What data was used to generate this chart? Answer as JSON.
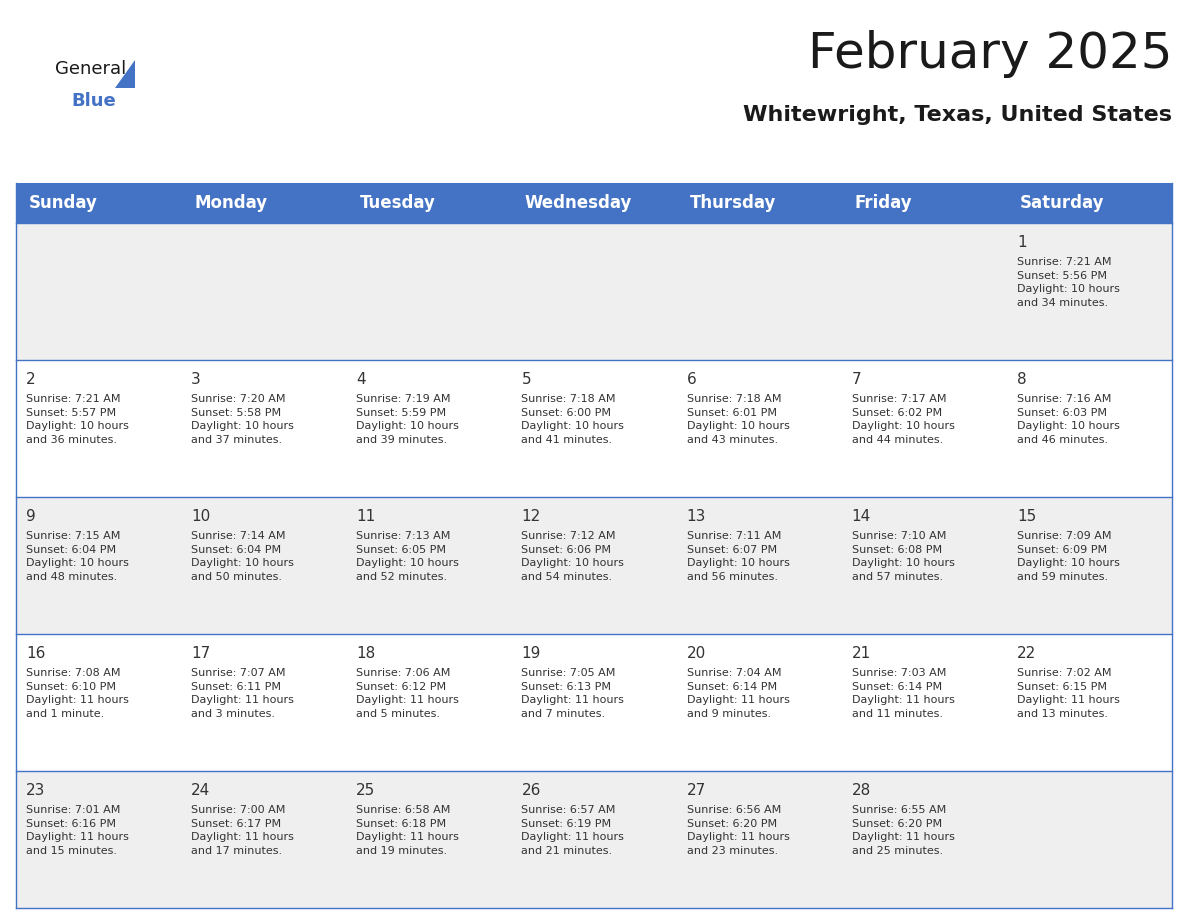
{
  "title": "February 2025",
  "subtitle": "Whitewright, Texas, United States",
  "header_bg_color": "#4472C4",
  "header_text_color": "#FFFFFF",
  "row_colors": [
    "#EFEFEF",
    "#FFFFFF",
    "#EFEFEF",
    "#FFFFFF",
    "#EFEFEF"
  ],
  "header_days": [
    "Sunday",
    "Monday",
    "Tuesday",
    "Wednesday",
    "Thursday",
    "Friday",
    "Saturday"
  ],
  "title_color": "#1a1a1a",
  "subtitle_color": "#1a1a1a",
  "cell_text_color": "#333333",
  "day_num_color": "#333333",
  "grid_line_color": "#4472C4",
  "logo_color_general": "#1a1a1a",
  "logo_color_blue": "#4472C4",
  "weeks": [
    [
      {
        "day": "",
        "info": ""
      },
      {
        "day": "",
        "info": ""
      },
      {
        "day": "",
        "info": ""
      },
      {
        "day": "",
        "info": ""
      },
      {
        "day": "",
        "info": ""
      },
      {
        "day": "",
        "info": ""
      },
      {
        "day": "1",
        "info": "Sunrise: 7:21 AM\nSunset: 5:56 PM\nDaylight: 10 hours\nand 34 minutes."
      }
    ],
    [
      {
        "day": "2",
        "info": "Sunrise: 7:21 AM\nSunset: 5:57 PM\nDaylight: 10 hours\nand 36 minutes."
      },
      {
        "day": "3",
        "info": "Sunrise: 7:20 AM\nSunset: 5:58 PM\nDaylight: 10 hours\nand 37 minutes."
      },
      {
        "day": "4",
        "info": "Sunrise: 7:19 AM\nSunset: 5:59 PM\nDaylight: 10 hours\nand 39 minutes."
      },
      {
        "day": "5",
        "info": "Sunrise: 7:18 AM\nSunset: 6:00 PM\nDaylight: 10 hours\nand 41 minutes."
      },
      {
        "day": "6",
        "info": "Sunrise: 7:18 AM\nSunset: 6:01 PM\nDaylight: 10 hours\nand 43 minutes."
      },
      {
        "day": "7",
        "info": "Sunrise: 7:17 AM\nSunset: 6:02 PM\nDaylight: 10 hours\nand 44 minutes."
      },
      {
        "day": "8",
        "info": "Sunrise: 7:16 AM\nSunset: 6:03 PM\nDaylight: 10 hours\nand 46 minutes."
      }
    ],
    [
      {
        "day": "9",
        "info": "Sunrise: 7:15 AM\nSunset: 6:04 PM\nDaylight: 10 hours\nand 48 minutes."
      },
      {
        "day": "10",
        "info": "Sunrise: 7:14 AM\nSunset: 6:04 PM\nDaylight: 10 hours\nand 50 minutes."
      },
      {
        "day": "11",
        "info": "Sunrise: 7:13 AM\nSunset: 6:05 PM\nDaylight: 10 hours\nand 52 minutes."
      },
      {
        "day": "12",
        "info": "Sunrise: 7:12 AM\nSunset: 6:06 PM\nDaylight: 10 hours\nand 54 minutes."
      },
      {
        "day": "13",
        "info": "Sunrise: 7:11 AM\nSunset: 6:07 PM\nDaylight: 10 hours\nand 56 minutes."
      },
      {
        "day": "14",
        "info": "Sunrise: 7:10 AM\nSunset: 6:08 PM\nDaylight: 10 hours\nand 57 minutes."
      },
      {
        "day": "15",
        "info": "Sunrise: 7:09 AM\nSunset: 6:09 PM\nDaylight: 10 hours\nand 59 minutes."
      }
    ],
    [
      {
        "day": "16",
        "info": "Sunrise: 7:08 AM\nSunset: 6:10 PM\nDaylight: 11 hours\nand 1 minute."
      },
      {
        "day": "17",
        "info": "Sunrise: 7:07 AM\nSunset: 6:11 PM\nDaylight: 11 hours\nand 3 minutes."
      },
      {
        "day": "18",
        "info": "Sunrise: 7:06 AM\nSunset: 6:12 PM\nDaylight: 11 hours\nand 5 minutes."
      },
      {
        "day": "19",
        "info": "Sunrise: 7:05 AM\nSunset: 6:13 PM\nDaylight: 11 hours\nand 7 minutes."
      },
      {
        "day": "20",
        "info": "Sunrise: 7:04 AM\nSunset: 6:14 PM\nDaylight: 11 hours\nand 9 minutes."
      },
      {
        "day": "21",
        "info": "Sunrise: 7:03 AM\nSunset: 6:14 PM\nDaylight: 11 hours\nand 11 minutes."
      },
      {
        "day": "22",
        "info": "Sunrise: 7:02 AM\nSunset: 6:15 PM\nDaylight: 11 hours\nand 13 minutes."
      }
    ],
    [
      {
        "day": "23",
        "info": "Sunrise: 7:01 AM\nSunset: 6:16 PM\nDaylight: 11 hours\nand 15 minutes."
      },
      {
        "day": "24",
        "info": "Sunrise: 7:00 AM\nSunset: 6:17 PM\nDaylight: 11 hours\nand 17 minutes."
      },
      {
        "day": "25",
        "info": "Sunrise: 6:58 AM\nSunset: 6:18 PM\nDaylight: 11 hours\nand 19 minutes."
      },
      {
        "day": "26",
        "info": "Sunrise: 6:57 AM\nSunset: 6:19 PM\nDaylight: 11 hours\nand 21 minutes."
      },
      {
        "day": "27",
        "info": "Sunrise: 6:56 AM\nSunset: 6:20 PM\nDaylight: 11 hours\nand 23 minutes."
      },
      {
        "day": "28",
        "info": "Sunrise: 6:55 AM\nSunset: 6:20 PM\nDaylight: 11 hours\nand 25 minutes."
      },
      {
        "day": "",
        "info": ""
      }
    ]
  ]
}
